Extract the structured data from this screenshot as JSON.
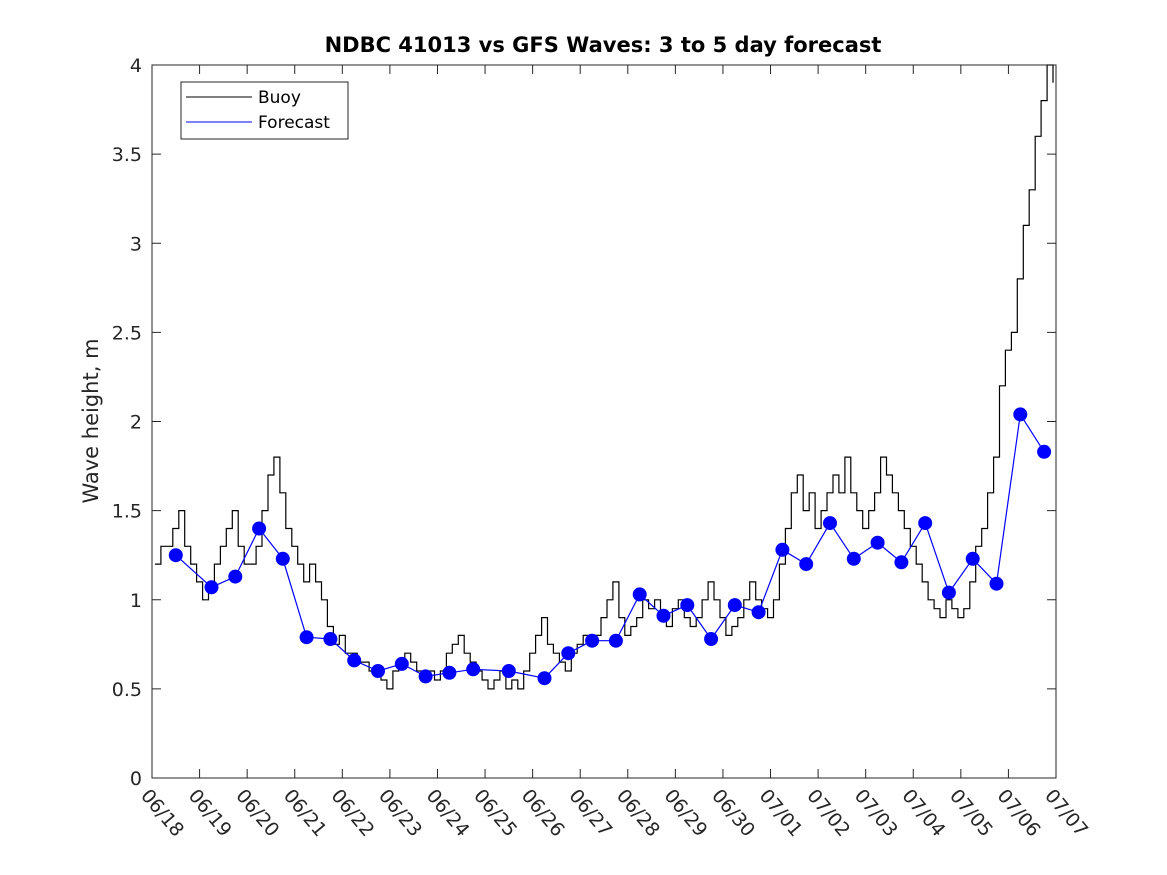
{
  "chart_data": {
    "type": "line",
    "title": "NDBC 41013 vs GFS Waves: 3 to 5 day forecast",
    "xlabel": "",
    "ylabel": "Wave height, m",
    "x_unit": "day",
    "xlim": [
      "06/18",
      "07/07"
    ],
    "ylim": [
      0,
      4
    ],
    "x_tick_labels": [
      "06/18",
      "06/19",
      "06/20",
      "06/21",
      "06/22",
      "06/23",
      "06/24",
      "06/25",
      "06/26",
      "06/27",
      "06/28",
      "06/29",
      "06/30",
      "07/01",
      "07/02",
      "07/03",
      "07/04",
      "07/05",
      "07/06",
      "07/07"
    ],
    "y_ticks": [
      0,
      0.5,
      1,
      1.5,
      2,
      2.5,
      3,
      3.5,
      4
    ],
    "y_tick_labels": [
      "0",
      "0.5",
      "1",
      "1.5",
      "2",
      "2.5",
      "3",
      "3.5",
      "4"
    ],
    "grid": false,
    "legend": {
      "position": "top-left",
      "entries": [
        {
          "label": "Buoy",
          "color": "#000000"
        },
        {
          "label": "Forecast",
          "color": "#0000ff"
        }
      ]
    },
    "series": [
      {
        "name": "Buoy",
        "color": "#000000",
        "points": [
          [
            "06/18",
            1.2
          ],
          [
            "06/18",
            1.3
          ],
          [
            "06/18",
            1.3
          ],
          [
            "06/18",
            1.4
          ],
          [
            "06/18",
            1.5
          ],
          [
            "06/18",
            1.3
          ],
          [
            "06/18",
            1.2
          ],
          [
            "06/18",
            1.1
          ],
          [
            "06/19",
            1.0
          ],
          [
            "06/19",
            1.1
          ],
          [
            "06/19",
            1.2
          ],
          [
            "06/19",
            1.3
          ],
          [
            "06/19",
            1.4
          ],
          [
            "06/19",
            1.5
          ],
          [
            "06/19",
            1.3
          ],
          [
            "06/19",
            1.2
          ],
          [
            "06/20",
            1.2
          ],
          [
            "06/20",
            1.3
          ],
          [
            "06/20",
            1.5
          ],
          [
            "06/20",
            1.7
          ],
          [
            "06/20",
            1.8
          ],
          [
            "06/20",
            1.6
          ],
          [
            "06/20",
            1.4
          ],
          [
            "06/20",
            1.3
          ],
          [
            "06/21",
            1.2
          ],
          [
            "06/21",
            1.1
          ],
          [
            "06/21",
            1.2
          ],
          [
            "06/21",
            1.1
          ],
          [
            "06/21",
            1.0
          ],
          [
            "06/21",
            0.85
          ],
          [
            "06/21",
            0.75
          ],
          [
            "06/21",
            0.8
          ],
          [
            "06/22",
            0.7
          ],
          [
            "06/22",
            0.7
          ],
          [
            "06/22",
            0.65
          ],
          [
            "06/22",
            0.65
          ],
          [
            "06/22",
            0.6
          ],
          [
            "06/22",
            0.6
          ],
          [
            "06/22",
            0.55
          ],
          [
            "06/22",
            0.5
          ],
          [
            "06/23",
            0.6
          ],
          [
            "06/23",
            0.65
          ],
          [
            "06/23",
            0.7
          ],
          [
            "06/23",
            0.65
          ],
          [
            "06/23",
            0.6
          ],
          [
            "06/23",
            0.55
          ],
          [
            "06/23",
            0.6
          ],
          [
            "06/23",
            0.55
          ],
          [
            "06/24",
            0.6
          ],
          [
            "06/24",
            0.7
          ],
          [
            "06/24",
            0.75
          ],
          [
            "06/24",
            0.8
          ],
          [
            "06/24",
            0.7
          ],
          [
            "06/24",
            0.65
          ],
          [
            "06/24",
            0.6
          ],
          [
            "06/24",
            0.55
          ],
          [
            "06/25",
            0.5
          ],
          [
            "06/25",
            0.55
          ],
          [
            "06/25",
            0.6
          ],
          [
            "06/25",
            0.5
          ],
          [
            "06/25",
            0.55
          ],
          [
            "06/25",
            0.5
          ],
          [
            "06/25",
            0.6
          ],
          [
            "06/25",
            0.7
          ],
          [
            "06/26",
            0.8
          ],
          [
            "06/26",
            0.9
          ],
          [
            "06/26",
            0.75
          ],
          [
            "06/26",
            0.7
          ],
          [
            "06/26",
            0.65
          ],
          [
            "06/26",
            0.6
          ],
          [
            "06/26",
            0.7
          ],
          [
            "06/26",
            0.75
          ],
          [
            "06/27",
            0.8
          ],
          [
            "06/27",
            0.75
          ],
          [
            "06/27",
            0.8
          ],
          [
            "06/27",
            0.9
          ],
          [
            "06/27",
            1.0
          ],
          [
            "06/27",
            1.1
          ],
          [
            "06/27",
            0.9
          ],
          [
            "06/27",
            0.8
          ],
          [
            "06/28",
            0.85
          ],
          [
            "06/28",
            0.9
          ],
          [
            "06/28",
            1.0
          ],
          [
            "06/28",
            0.95
          ],
          [
            "06/28",
            1.0
          ],
          [
            "06/28",
            0.9
          ],
          [
            "06/28",
            0.85
          ],
          [
            "06/28",
            0.95
          ],
          [
            "06/29",
            1.0
          ],
          [
            "06/29",
            0.9
          ],
          [
            "06/29",
            0.85
          ],
          [
            "06/29",
            0.9
          ],
          [
            "06/29",
            1.0
          ],
          [
            "06/29",
            1.1
          ],
          [
            "06/29",
            1.0
          ],
          [
            "06/29",
            0.9
          ],
          [
            "06/30",
            0.8
          ],
          [
            "06/30",
            0.85
          ],
          [
            "06/30",
            0.9
          ],
          [
            "06/30",
            1.0
          ],
          [
            "06/30",
            1.1
          ],
          [
            "06/30",
            1.0
          ],
          [
            "06/30",
            0.95
          ],
          [
            "06/30",
            0.9
          ],
          [
            "07/01",
            1.0
          ],
          [
            "07/01",
            1.2
          ],
          [
            "07/01",
            1.4
          ],
          [
            "07/01",
            1.6
          ],
          [
            "07/01",
            1.7
          ],
          [
            "07/01",
            1.5
          ],
          [
            "07/01",
            1.6
          ],
          [
            "07/01",
            1.4
          ],
          [
            "07/02",
            1.5
          ],
          [
            "07/02",
            1.6
          ],
          [
            "07/02",
            1.7
          ],
          [
            "07/02",
            1.6
          ],
          [
            "07/02",
            1.8
          ],
          [
            "07/02",
            1.6
          ],
          [
            "07/02",
            1.5
          ],
          [
            "07/02",
            1.4
          ],
          [
            "07/03",
            1.5
          ],
          [
            "07/03",
            1.6
          ],
          [
            "07/03",
            1.8
          ],
          [
            "07/03",
            1.7
          ],
          [
            "07/03",
            1.6
          ],
          [
            "07/03",
            1.5
          ],
          [
            "07/03",
            1.4
          ],
          [
            "07/03",
            1.3
          ],
          [
            "07/04",
            1.2
          ],
          [
            "07/04",
            1.1
          ],
          [
            "07/04",
            1.0
          ],
          [
            "07/04",
            0.95
          ],
          [
            "07/04",
            0.9
          ],
          [
            "07/04",
            1.0
          ],
          [
            "07/04",
            0.95
          ],
          [
            "07/04",
            0.9
          ],
          [
            "07/05",
            0.95
          ],
          [
            "07/05",
            1.1
          ],
          [
            "07/05",
            1.3
          ],
          [
            "07/05",
            1.4
          ],
          [
            "07/05",
            1.6
          ],
          [
            "07/05",
            1.8
          ],
          [
            "07/05",
            2.2
          ],
          [
            "07/05",
            2.4
          ],
          [
            "07/06",
            2.5
          ],
          [
            "07/06",
            2.8
          ],
          [
            "07/06",
            3.1
          ],
          [
            "07/06",
            3.3
          ],
          [
            "07/06",
            3.6
          ],
          [
            "07/06",
            3.8
          ],
          [
            "07/06",
            4.0
          ],
          [
            "07/06",
            3.9
          ]
        ]
      },
      {
        "name": "Forecast",
        "color": "#0000ff",
        "markers": [
          [
            "06/18",
            1.25
          ],
          [
            "06/19",
            1.07
          ],
          [
            "06/19",
            1.13
          ],
          [
            "06/20",
            1.4
          ],
          [
            "06/20",
            1.23
          ],
          [
            "06/21",
            0.79
          ],
          [
            "06/21",
            0.78
          ],
          [
            "06/22",
            0.66
          ],
          [
            "06/22",
            0.6
          ],
          [
            "06/23",
            0.64
          ],
          [
            "06/23",
            0.57
          ],
          [
            "06/24",
            0.59
          ],
          [
            "06/24",
            0.61
          ],
          [
            "06/25",
            0.6
          ],
          [
            "06/26",
            0.56
          ],
          [
            "06/26",
            0.7
          ],
          [
            "06/27",
            0.77
          ],
          [
            "06/27",
            0.77
          ],
          [
            "06/28",
            1.03
          ],
          [
            "06/28",
            0.91
          ],
          [
            "06/29",
            0.97
          ],
          [
            "06/29",
            0.78
          ],
          [
            "06/30",
            0.97
          ],
          [
            "06/30",
            0.93
          ],
          [
            "07/01",
            1.28
          ],
          [
            "07/01",
            1.2
          ],
          [
            "07/02",
            1.43
          ],
          [
            "07/02",
            1.23
          ],
          [
            "07/03",
            1.32
          ],
          [
            "07/03",
            1.21
          ],
          [
            "07/04",
            1.43
          ],
          [
            "07/04",
            1.04
          ],
          [
            "07/05",
            1.23
          ],
          [
            "07/05",
            1.09
          ],
          [
            "07/06",
            2.04
          ],
          [
            "07/06",
            1.83
          ]
        ]
      }
    ]
  }
}
